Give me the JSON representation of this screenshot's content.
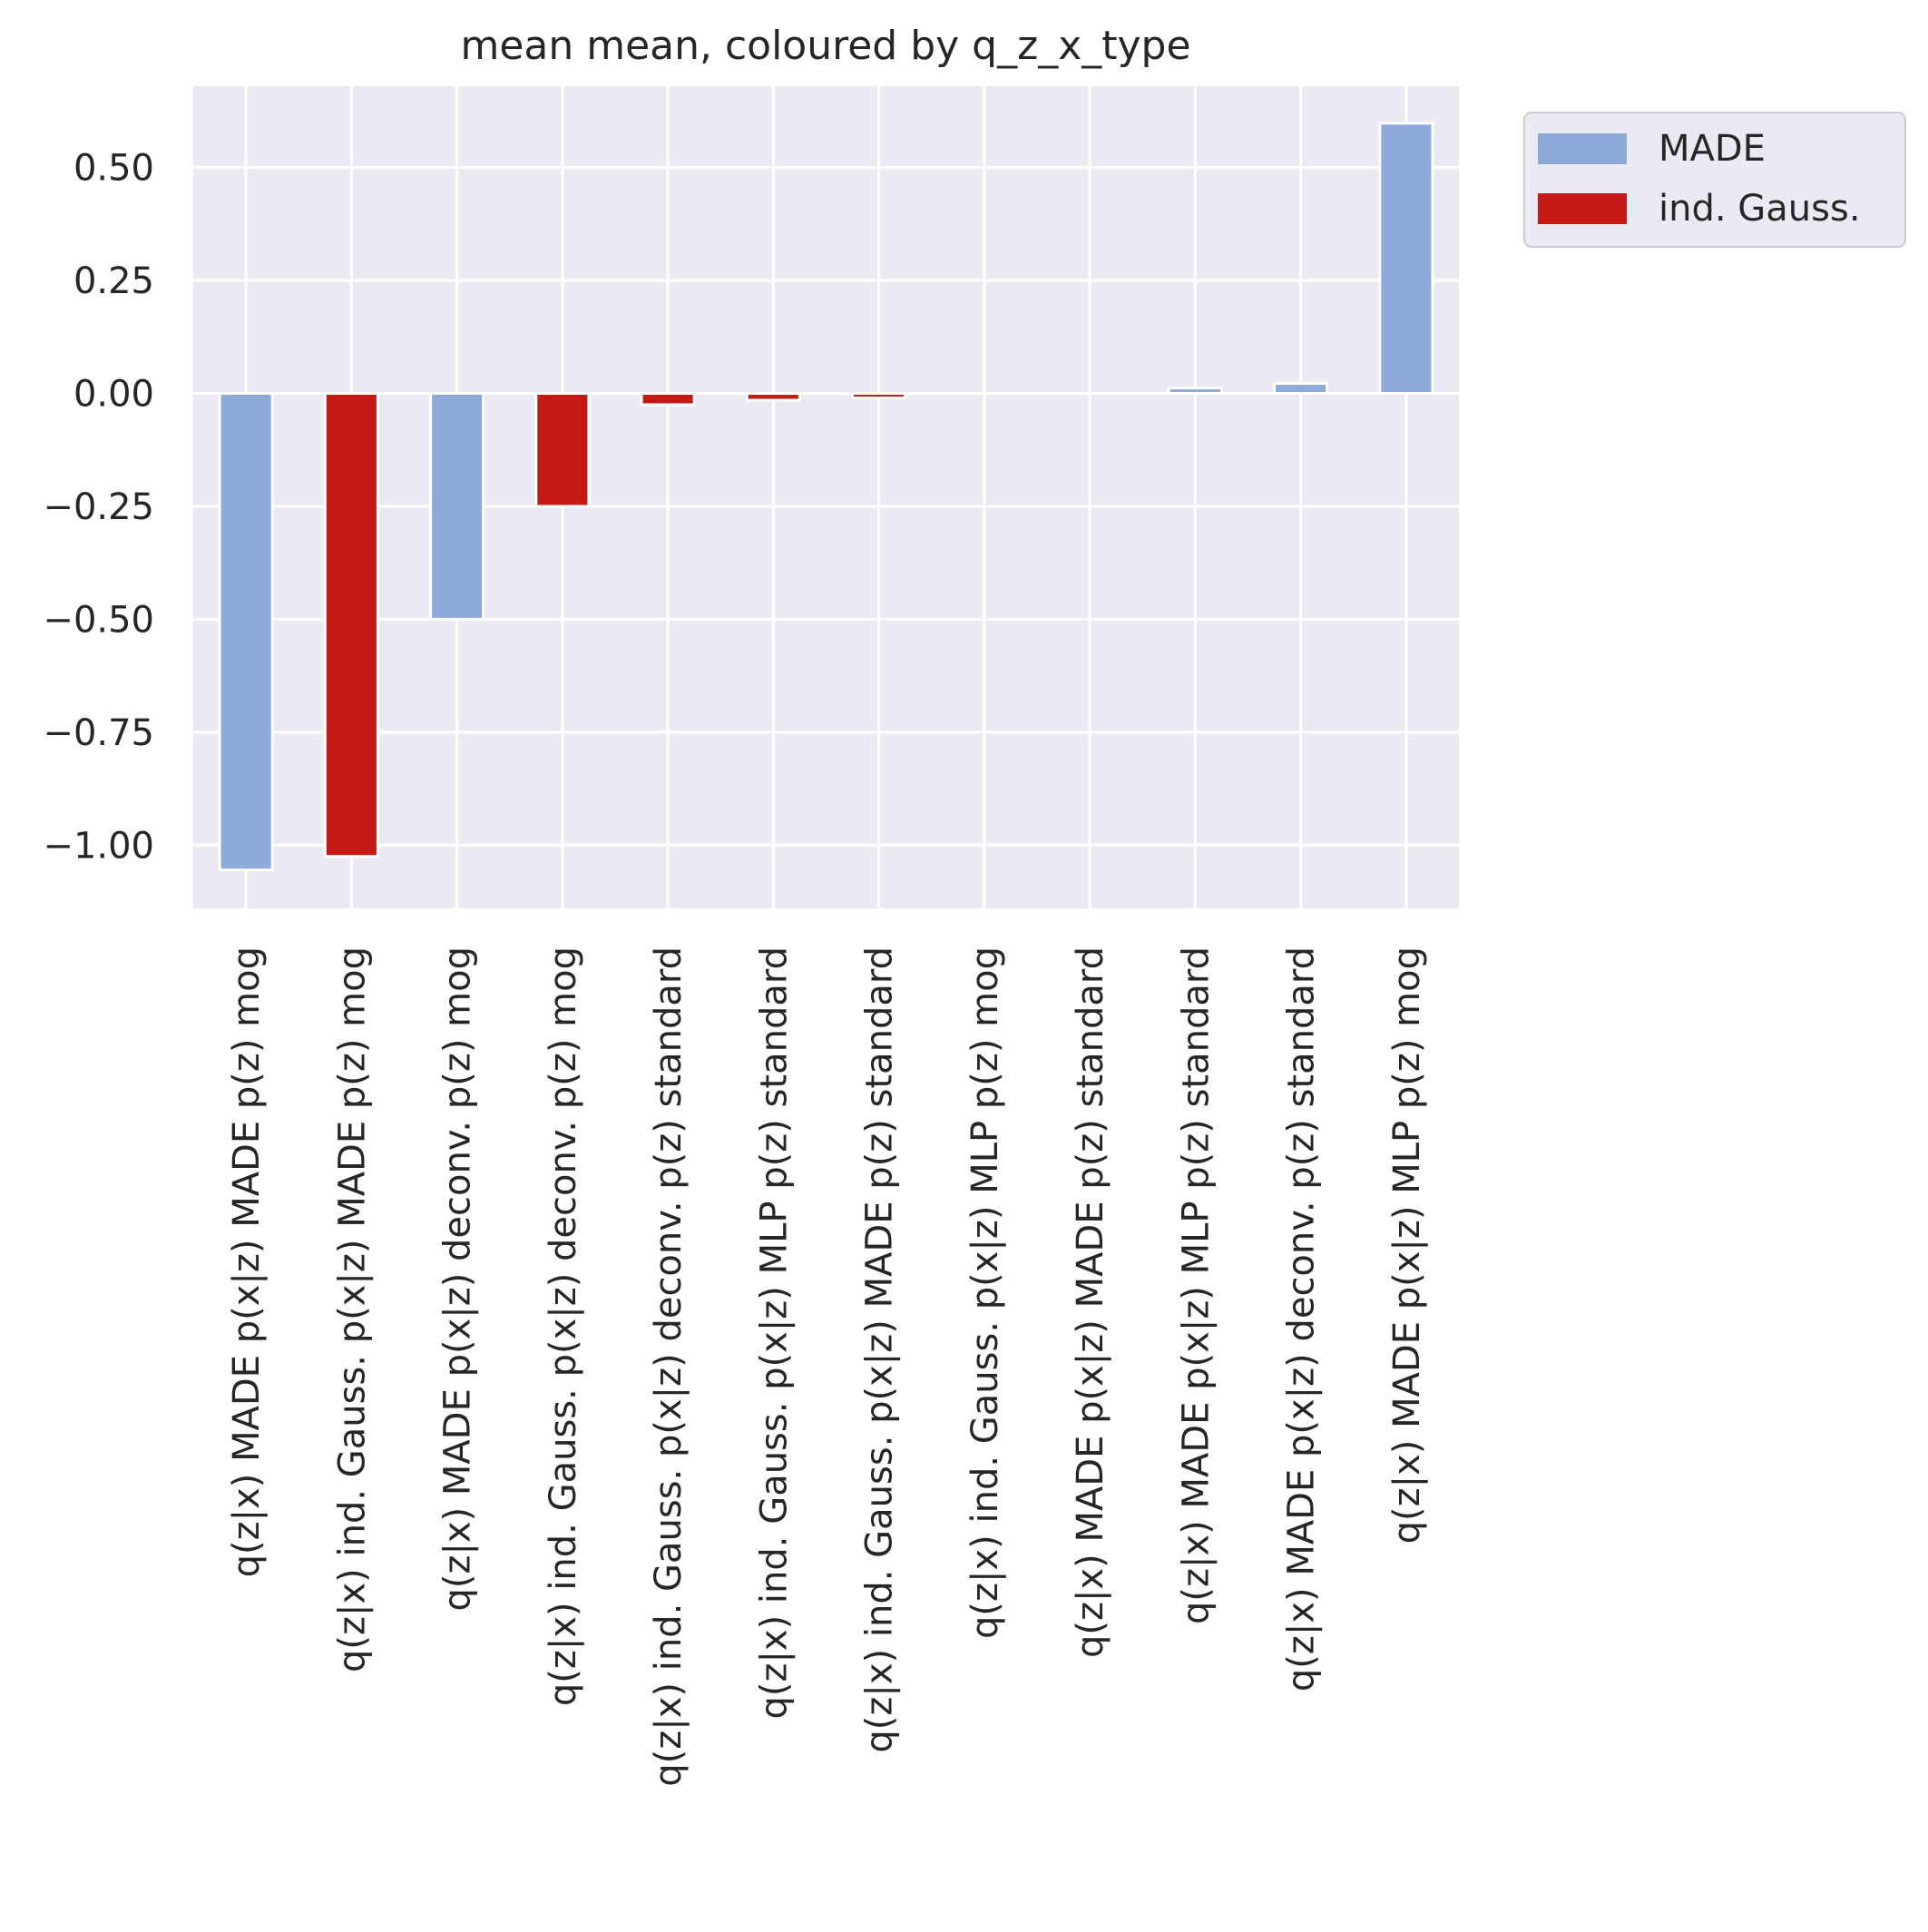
{
  "chart_data": {
    "type": "bar",
    "title": "mean mean, coloured by q_z_x_type",
    "xlabel": "",
    "ylabel": "",
    "ylim": [
      -1.14,
      0.68
    ],
    "yticks": [
      0.5,
      0.25,
      0.0,
      -0.25,
      -0.5,
      -0.75,
      -1.0
    ],
    "ytick_labels": [
      "0.50",
      "0.25",
      "0.00",
      "−0.25",
      "−0.50",
      "−0.75",
      "−1.00"
    ],
    "grid": true,
    "legend_position": "outside top-right",
    "categories": [
      "q(z|x) MADE p(x|z) MADE p(z) mog",
      "q(z|x) ind. Gauss. p(x|z) MADE p(z) mog",
      "q(z|x) MADE p(x|z) deconv. p(z) mog",
      "q(z|x) ind. Gauss. p(x|z) deconv. p(z) mog",
      "q(z|x) ind. Gauss. p(x|z) deconv. p(z) standard",
      "q(z|x) ind. Gauss. p(x|z) MLP p(z) standard",
      "q(z|x) ind. Gauss. p(x|z) MADE p(z) standard",
      "q(z|x) ind. Gauss. p(x|z) MLP p(z) mog",
      "q(z|x) MADE p(x|z) MADE p(z) standard",
      "q(z|x) MADE p(x|z) MLP p(z) standard",
      "q(z|x) MADE p(x|z) deconv. p(z) standard",
      "q(z|x) MADE p(x|z) MLP p(z) mog"
    ],
    "values": [
      -1.055,
      -1.025,
      -0.5,
      -0.25,
      -0.025,
      -0.015,
      -0.01,
      0.0,
      0.0,
      0.012,
      0.022,
      0.598
    ],
    "groups": [
      "MADE",
      "ind. Gauss.",
      "MADE",
      "ind. Gauss.",
      "ind. Gauss.",
      "ind. Gauss.",
      "ind. Gauss.",
      "ind. Gauss.",
      "MADE",
      "MADE",
      "MADE",
      "MADE"
    ],
    "legend": [
      {
        "name": "MADE",
        "color": "#8eaadb"
      },
      {
        "name": "ind. Gauss.",
        "color": "#c41a16"
      }
    ]
  }
}
